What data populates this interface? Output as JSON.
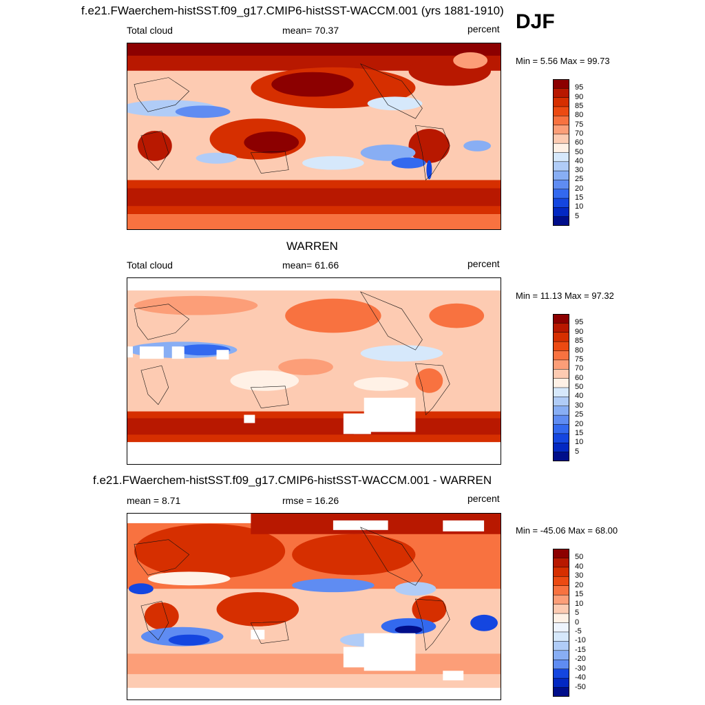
{
  "season": "DJF",
  "panels": [
    {
      "title": "f.e21.FWaerchem-histSST.f09_g17.CMIP6-histSST-WACCM.001 (yrs 1881-1910)",
      "left_label": "Total cloud",
      "center_label": "mean=  70.37",
      "right_label": "percent",
      "minmax_label": "Min =   5.56 Max =  99.73",
      "levels": [
        "95",
        "90",
        "85",
        "80",
        "75",
        "70",
        "60",
        "50",
        "40",
        "30",
        "25",
        "20",
        "15",
        "10",
        "5"
      ],
      "colors": [
        "#8c0000",
        "#b81800",
        "#d62f00",
        "#ec4a12",
        "#f87240",
        "#fc9e78",
        "#fdcbb2",
        "#fff1e6",
        "#d6e8fb",
        "#b0ccf7",
        "#88aef4",
        "#5f8cf2",
        "#3369ef",
        "#1446e0",
        "#0328c2",
        "#000e8a"
      ]
    },
    {
      "title": "WARREN",
      "left_label": "Total cloud",
      "center_label": "mean=  61.66",
      "right_label": "percent",
      "minmax_label": "Min =  11.13 Max =  97.32",
      "levels": [
        "95",
        "90",
        "85",
        "80",
        "75",
        "70",
        "60",
        "50",
        "40",
        "30",
        "25",
        "20",
        "15",
        "10",
        "5"
      ],
      "colors": [
        "#8c0000",
        "#b81800",
        "#d62f00",
        "#ec4a12",
        "#f87240",
        "#fc9e78",
        "#fdcbb2",
        "#fff1e6",
        "#d6e8fb",
        "#b0ccf7",
        "#88aef4",
        "#5f8cf2",
        "#3369ef",
        "#1446e0",
        "#0328c2",
        "#000e8a"
      ]
    },
    {
      "title": "f.e21.FWaerchem-histSST.f09_g17.CMIP6-histSST-WACCM.001 - WARREN",
      "left_label": "mean =   8.71",
      "center_label": "rmse =  16.26",
      "right_label": "percent",
      "minmax_label": "Min = -45.06 Max =  68.00",
      "levels": [
        "50",
        "40",
        "30",
        "20",
        "15",
        "10",
        "5",
        "0",
        "-5",
        "-10",
        "-15",
        "-20",
        "-30",
        "-40",
        "-50"
      ],
      "colors": [
        "#8c0000",
        "#b81800",
        "#d62f00",
        "#ec4a12",
        "#f87240",
        "#fc9e78",
        "#fdcbb2",
        "#fff1e6",
        "#eef4fd",
        "#d6e8fb",
        "#b0ccf7",
        "#88aef4",
        "#5f8cf2",
        "#1446e0",
        "#0328c2",
        "#000e8a"
      ]
    }
  ]
}
